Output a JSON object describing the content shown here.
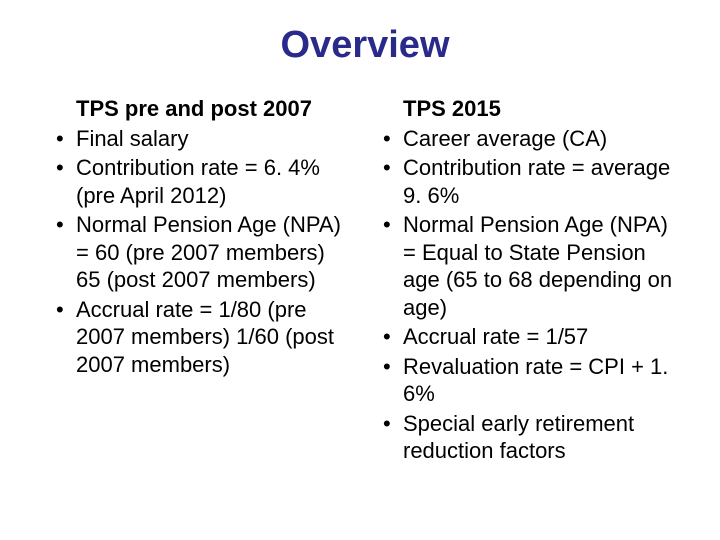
{
  "title": {
    "text": "Overview",
    "color": "#2a2a8a",
    "fontsize": 38
  },
  "body": {
    "color": "#000000",
    "fontsize": 22,
    "lineheight": 1.25
  },
  "left": {
    "heading": "TPS pre and post 2007",
    "items": [
      "Final salary",
      "Contribution rate = 6. 4% (pre April 2012)",
      "Normal Pension Age (NPA) = 60 (pre 2007 members) 65 (post 2007 members)",
      "Accrual rate = 1/80 (pre 2007 members) 1/60 (post 2007 members)"
    ]
  },
  "right": {
    "heading": "TPS 2015",
    "items": [
      "Career average (CA)",
      "Contribution rate = average 9. 6%",
      "Normal Pension Age (NPA) = Equal to State Pension age (65 to 68 depending on age)",
      "Accrual rate = 1/57",
      "Revaluation rate = CPI + 1. 6%",
      "Special early retirement reduction factors"
    ]
  }
}
